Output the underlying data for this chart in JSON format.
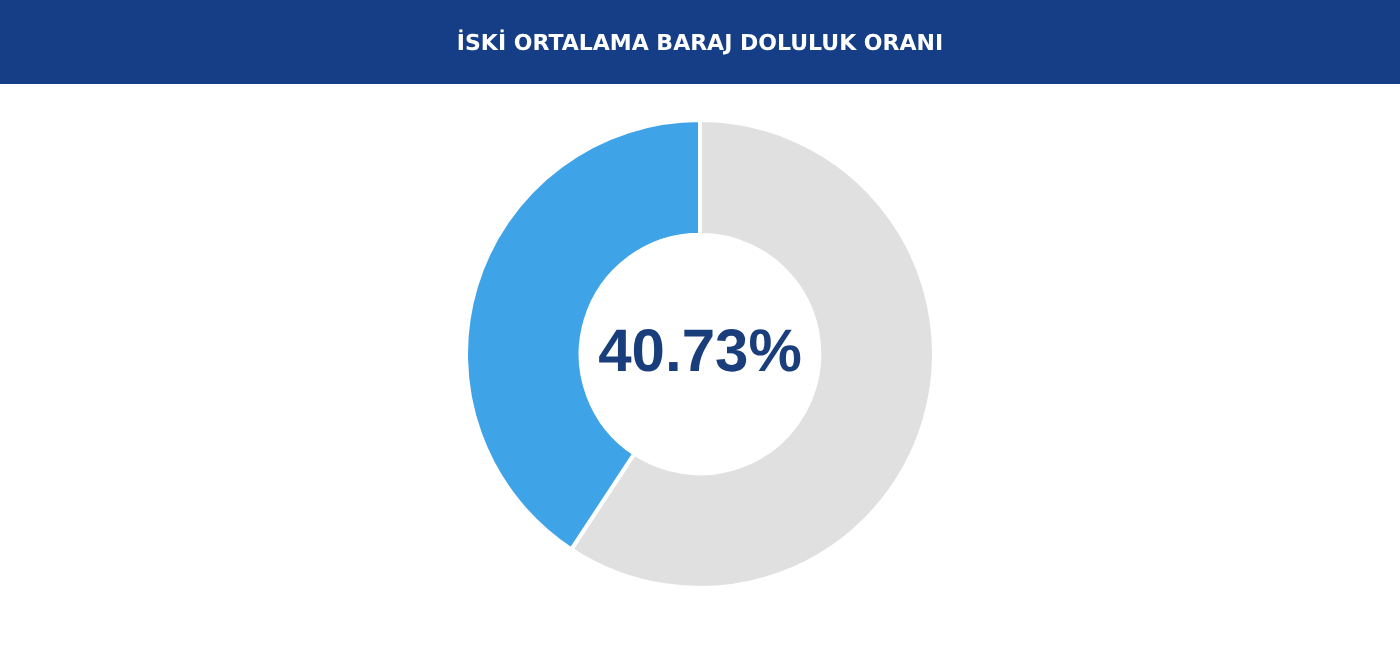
{
  "chart_data": {
    "type": "donut",
    "title": "İSKİ ORTALAMA BARAJ DOLULUK ORANI",
    "categories": [
      null,
      null
    ],
    "values": [
      59.27,
      40.73
    ],
    "colors": [
      "#e0e0e0",
      "#3fa3e8"
    ],
    "value_labels": [
      null,
      "40.73%"
    ],
    "legend": false
  }
}
